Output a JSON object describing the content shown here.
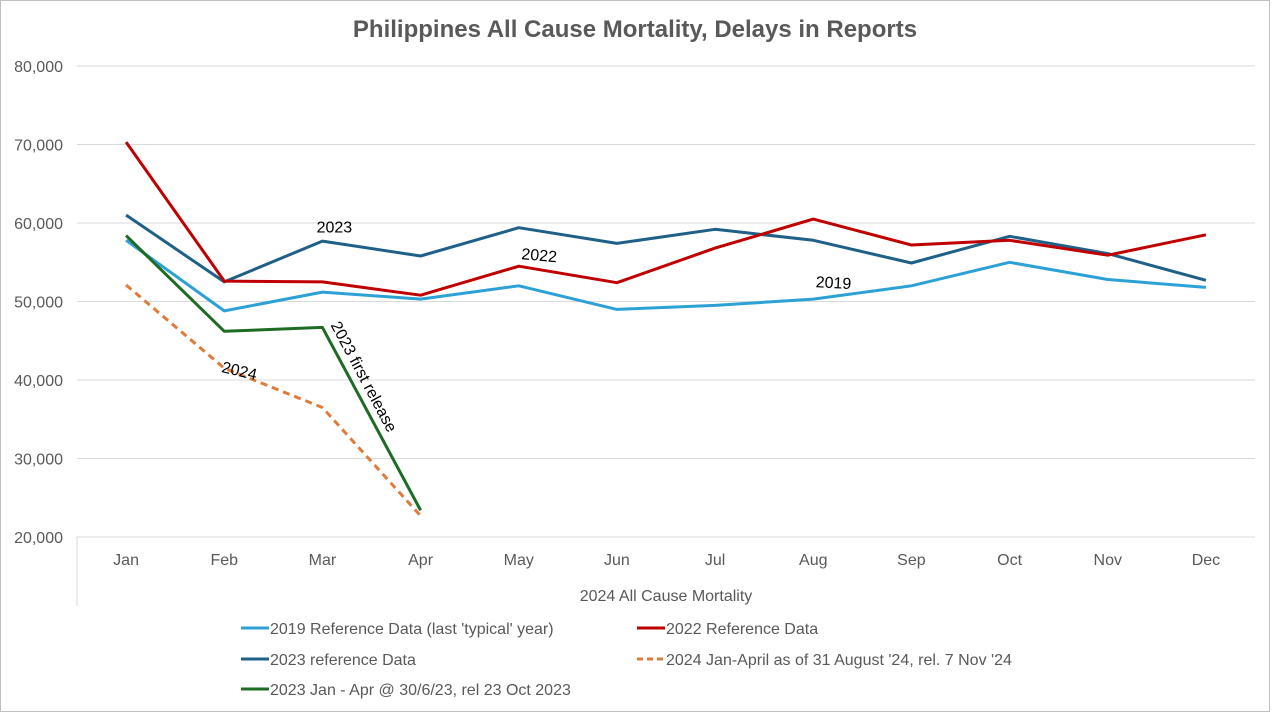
{
  "chart_data": {
    "type": "line",
    "title": "Philippines All Cause Mortality, Delays in Reports",
    "xlabel": "2024 All Cause Mortality",
    "ylabel": "",
    "ylim": [
      20000,
      80000
    ],
    "yticks": [
      20000,
      30000,
      40000,
      50000,
      60000,
      70000,
      80000
    ],
    "ytick_labels": [
      "20,000",
      "30,000",
      "40,000",
      "50,000",
      "60,000",
      "70,000",
      "80,000"
    ],
    "grid": true,
    "legend_position": "bottom",
    "categories": [
      "Jan",
      "Feb",
      "Mar",
      "Apr",
      "May",
      "Jun",
      "Jul",
      "Aug",
      "Sep",
      "Oct",
      "Nov",
      "Dec"
    ],
    "series": [
      {
        "name": "2019  Reference Data (last 'typical' year)",
        "color": "#2ca1d6",
        "dash": false,
        "values": [
          57800,
          48800,
          51200,
          50300,
          52000,
          49000,
          49500,
          50300,
          52000,
          55000,
          52800,
          51800
        ]
      },
      {
        "name": "2022 Reference Data",
        "color": "#c00000",
        "dash": false,
        "values": [
          70300,
          52600,
          52500,
          50800,
          54500,
          52400,
          56800,
          60500,
          57200,
          57800,
          55900,
          58500
        ]
      },
      {
        "name": "2023 reference Data",
        "color": "#1f6088",
        "dash": false,
        "values": [
          61000,
          52500,
          57700,
          55800,
          59400,
          57400,
          59200,
          57800,
          54900,
          58300,
          56100,
          52700
        ]
      },
      {
        "name": "2024 Jan-April as of 31 August '24, rel. 7 Nov '24",
        "color": "#e07b39",
        "dash": true,
        "values": [
          52100,
          41500,
          36500,
          22700,
          null,
          null,
          null,
          null,
          null,
          null,
          null,
          null
        ]
      },
      {
        "name": "2023 Jan - Apr @ 30/6/23, rel 23 Oct 2023",
        "color": "#1e6b24",
        "dash": false,
        "values": [
          58400,
          46200,
          46700,
          23400,
          null,
          null,
          null,
          null,
          null,
          null,
          null,
          null
        ]
      }
    ],
    "annotations": [
      {
        "text": "2023",
        "x": "Mar",
        "y": 58800
      },
      {
        "text": "2022",
        "x": "May",
        "y": 55200
      },
      {
        "text": "2019",
        "x": "Aug",
        "y": 51700
      },
      {
        "text": "2024",
        "x": "Feb",
        "y": 40500
      },
      {
        "text": "2023 first release",
        "x": "Mar",
        "y": 37000
      }
    ]
  }
}
